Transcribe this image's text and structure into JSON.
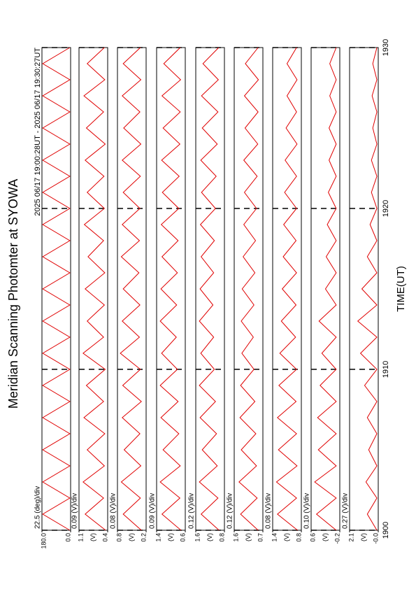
{
  "chart_data": {
    "type": "line",
    "title": "Meridian Scanning Photomter at SYOWA",
    "subtitle": "2025 06/17 19:00:28UT - 2025 06/17 19:30:27UT",
    "x_label": "TIME(UT)",
    "xlim": [
      1900,
      1930
    ],
    "xticks": [
      1900,
      1910,
      1920,
      1930
    ],
    "grid": true,
    "color": "#e00000",
    "x": [
      1900,
      1901,
      1902,
      1903,
      1904,
      1905,
      1906,
      1907,
      1908,
      1909,
      1910,
      1911,
      1912,
      1913,
      1914,
      1915,
      1916,
      1917,
      1918,
      1919,
      1920,
      1921,
      1922,
      1923,
      1924,
      1925,
      1926,
      1927,
      1928,
      1929,
      1930
    ],
    "panels": [
      {
        "label": "22.5 (deg)/div",
        "ylim": [
          0,
          180
        ],
        "yticks": [
          {
            "value": 0,
            "label": "0.0"
          },
          {
            "value": 180,
            "label": "180.0"
          }
        ],
        "values": [
          5,
          175,
          5,
          175,
          5,
          175,
          5,
          175,
          5,
          175,
          5,
          175,
          5,
          175,
          5,
          175,
          5,
          175,
          5,
          175,
          5,
          175,
          5,
          175,
          5,
          175,
          5,
          175,
          5,
          175,
          5
        ]
      },
      {
        "label": "0.09 (V)/div",
        "unit": "(V)",
        "ylim": [
          0.4,
          1.1
        ],
        "yticks": [
          0.4,
          1.1
        ],
        "values": [
          0.45,
          0.95,
          0.5,
          1.0,
          0.48,
          0.9,
          0.47,
          0.98,
          0.5,
          0.92,
          0.46,
          1.0,
          0.5,
          0.9,
          0.48,
          0.95,
          0.47,
          0.88,
          0.5,
          0.97,
          0.48,
          0.9,
          0.49,
          0.95,
          0.46,
          0.92,
          0.5,
          0.98,
          0.47,
          0.9,
          0.48
        ]
      },
      {
        "label": "0.08 (V)/div",
        "unit": "(V)",
        "ylim": [
          0.2,
          0.8
        ],
        "yticks": [
          0.2,
          0.8
        ],
        "values": [
          0.3,
          0.68,
          0.32,
          0.72,
          0.31,
          0.66,
          0.33,
          0.7,
          0.3,
          0.69,
          0.32,
          0.74,
          0.34,
          0.7,
          0.33,
          0.68,
          0.35,
          0.72,
          0.34,
          0.7,
          0.33,
          0.68,
          0.32,
          0.7,
          0.31,
          0.67,
          0.33,
          0.7,
          0.31,
          0.68,
          0.32
        ]
      },
      {
        "label": "0.09 (V)/div",
        "unit": "(V)",
        "ylim": [
          0.6,
          1.4
        ],
        "yticks": [
          0.6,
          1.4
        ],
        "values": [
          0.72,
          1.25,
          0.75,
          1.3,
          0.74,
          1.22,
          0.78,
          1.28,
          0.8,
          1.3,
          0.82,
          1.26,
          0.85,
          1.3,
          0.84,
          1.28,
          0.82,
          1.25,
          0.8,
          1.27,
          0.78,
          1.24,
          0.77,
          1.26,
          0.75,
          1.22,
          0.74,
          1.25,
          0.73,
          1.2,
          0.74
        ]
      },
      {
        "label": "0.12 (V)/div",
        "unit": "(V)",
        "ylim": [
          0.8,
          1.6
        ],
        "yticks": [
          0.8,
          1.6
        ],
        "values": [
          0.95,
          1.45,
          0.98,
          1.5,
          1.0,
          1.42,
          1.02,
          1.48,
          1.05,
          1.5,
          1.08,
          1.46,
          1.1,
          1.5,
          1.12,
          1.48,
          1.1,
          1.45,
          1.08,
          1.47,
          1.05,
          1.44,
          1.03,
          1.46,
          1.0,
          1.42,
          0.98,
          1.44,
          0.97,
          1.4,
          0.96
        ]
      },
      {
        "label": "0.12 (V)/div",
        "unit": "(V)",
        "ylim": [
          0.7,
          1.6
        ],
        "yticks": [
          0.7,
          1.6
        ],
        "values": [
          0.85,
          1.4,
          0.88,
          1.45,
          0.9,
          1.38,
          0.92,
          1.42,
          0.95,
          1.4,
          0.98,
          1.36,
          1.0,
          1.38,
          0.98,
          1.35,
          0.95,
          1.32,
          0.93,
          1.3,
          0.9,
          1.28,
          0.88,
          1.3,
          0.86,
          1.26,
          0.85,
          1.28,
          0.84,
          1.25,
          0.85
        ]
      },
      {
        "label": "0.08 (V)/div",
        "unit": "(V)",
        "ylim": [
          0.8,
          1.4
        ],
        "yticks": [
          0.8,
          1.4
        ],
        "values": [
          0.88,
          1.3,
          0.9,
          1.32,
          0.89,
          1.28,
          0.9,
          1.3,
          0.91,
          1.27,
          0.9,
          1.25,
          0.92,
          1.22,
          0.91,
          1.2,
          0.9,
          1.18,
          0.91,
          1.17,
          0.9,
          1.15,
          0.9,
          1.14,
          0.89,
          1.12,
          0.9,
          1.1,
          0.89,
          1.1,
          0.9
        ]
      },
      {
        "label": "0.10 (V)/div",
        "unit": "(V)",
        "ylim": [
          -0.2,
          0.6
        ],
        "yticks": [
          -0.2,
          0.6
        ],
        "values": [
          -0.1,
          0.45,
          -0.1,
          0.5,
          -0.1,
          0.4,
          -0.1,
          0.42,
          -0.1,
          0.35,
          -0.1,
          0.3,
          -0.1,
          0.38,
          -0.1,
          0.2,
          -0.1,
          0.18,
          -0.1,
          0.15,
          -0.1,
          0.12,
          -0.1,
          0.1,
          -0.1,
          0.1,
          -0.1,
          0.08,
          -0.1,
          0.08,
          -0.1
        ]
      },
      {
        "label": "0.27 (V)/div",
        "unit": "(V)",
        "ylim": [
          0,
          2.1
        ],
        "yticks": [
          {
            "value": 0,
            "label": "-0.0"
          },
          2.1
        ],
        "values": [
          0.1,
          0.8,
          0.1,
          0.9,
          0.1,
          0.7,
          0.1,
          0.8,
          0.1,
          1.0,
          0.1,
          1.3,
          0.1,
          1.5,
          0.1,
          1.2,
          0.1,
          0.8,
          0.1,
          0.6,
          0.1,
          0.5,
          0.1,
          0.5,
          0.1,
          0.4,
          0.1,
          0.45,
          0.1,
          0.4,
          0.1
        ]
      }
    ]
  }
}
